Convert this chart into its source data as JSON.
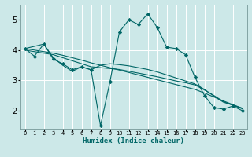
{
  "title": "",
  "xlabel": "Humidex (Indice chaleur)",
  "bg_color": "#cce8e8",
  "grid_color": "#ffffff",
  "line_color": "#006666",
  "xlim": [
    -0.5,
    23.5
  ],
  "ylim": [
    1.4,
    5.5
  ],
  "xticks": [
    0,
    1,
    2,
    3,
    4,
    5,
    6,
    7,
    8,
    9,
    10,
    11,
    12,
    13,
    14,
    15,
    16,
    17,
    18,
    19,
    20,
    21,
    22,
    23
  ],
  "yticks": [
    2,
    3,
    4,
    5
  ],
  "curve1_x": [
    0,
    1,
    2,
    3,
    4,
    5,
    6,
    7,
    8,
    9,
    10,
    11,
    12,
    13,
    14,
    15,
    16,
    17,
    18,
    19,
    20,
    21,
    22,
    23
  ],
  "curve1_y": [
    4.05,
    3.8,
    4.2,
    3.7,
    3.55,
    3.35,
    3.45,
    3.35,
    1.5,
    2.95,
    4.6,
    5.0,
    4.85,
    5.2,
    4.75,
    4.1,
    4.05,
    3.85,
    3.1,
    2.5,
    2.1,
    2.05,
    2.15,
    2.0
  ],
  "curve2_x": [
    0,
    2,
    3,
    4,
    5,
    6,
    7,
    8,
    9,
    10,
    11,
    12,
    13,
    14,
    15,
    16,
    17,
    18,
    19,
    20,
    21,
    22,
    23
  ],
  "curve2_y": [
    4.05,
    4.2,
    3.75,
    3.5,
    3.3,
    3.45,
    3.35,
    3.5,
    3.55,
    3.52,
    3.48,
    3.42,
    3.36,
    3.28,
    3.18,
    3.08,
    2.98,
    2.88,
    2.7,
    2.48,
    2.28,
    2.18,
    2.08
  ],
  "curve3_x": [
    0,
    1,
    2,
    3,
    4,
    5,
    6,
    7,
    8,
    9,
    10,
    11,
    12,
    13,
    14,
    15,
    16,
    17,
    18,
    19,
    20,
    21,
    22,
    23
  ],
  "curve3_y": [
    4.0,
    3.95,
    3.9,
    3.85,
    3.75,
    3.65,
    3.55,
    3.45,
    3.42,
    3.39,
    3.36,
    3.3,
    3.24,
    3.18,
    3.12,
    3.05,
    2.98,
    2.92,
    2.85,
    2.68,
    2.5,
    2.3,
    2.18,
    2.06
  ],
  "curve4_x": [
    0,
    1,
    2,
    3,
    4,
    5,
    6,
    7,
    8,
    9,
    10,
    11,
    12,
    13,
    14,
    15,
    16,
    17,
    18,
    19,
    20,
    21,
    22,
    23
  ],
  "curve4_y": [
    4.05,
    4.0,
    3.95,
    3.9,
    3.83,
    3.75,
    3.67,
    3.58,
    3.5,
    3.42,
    3.34,
    3.26,
    3.18,
    3.1,
    3.02,
    2.94,
    2.86,
    2.78,
    2.7,
    2.58,
    2.45,
    2.32,
    2.2,
    2.08
  ]
}
